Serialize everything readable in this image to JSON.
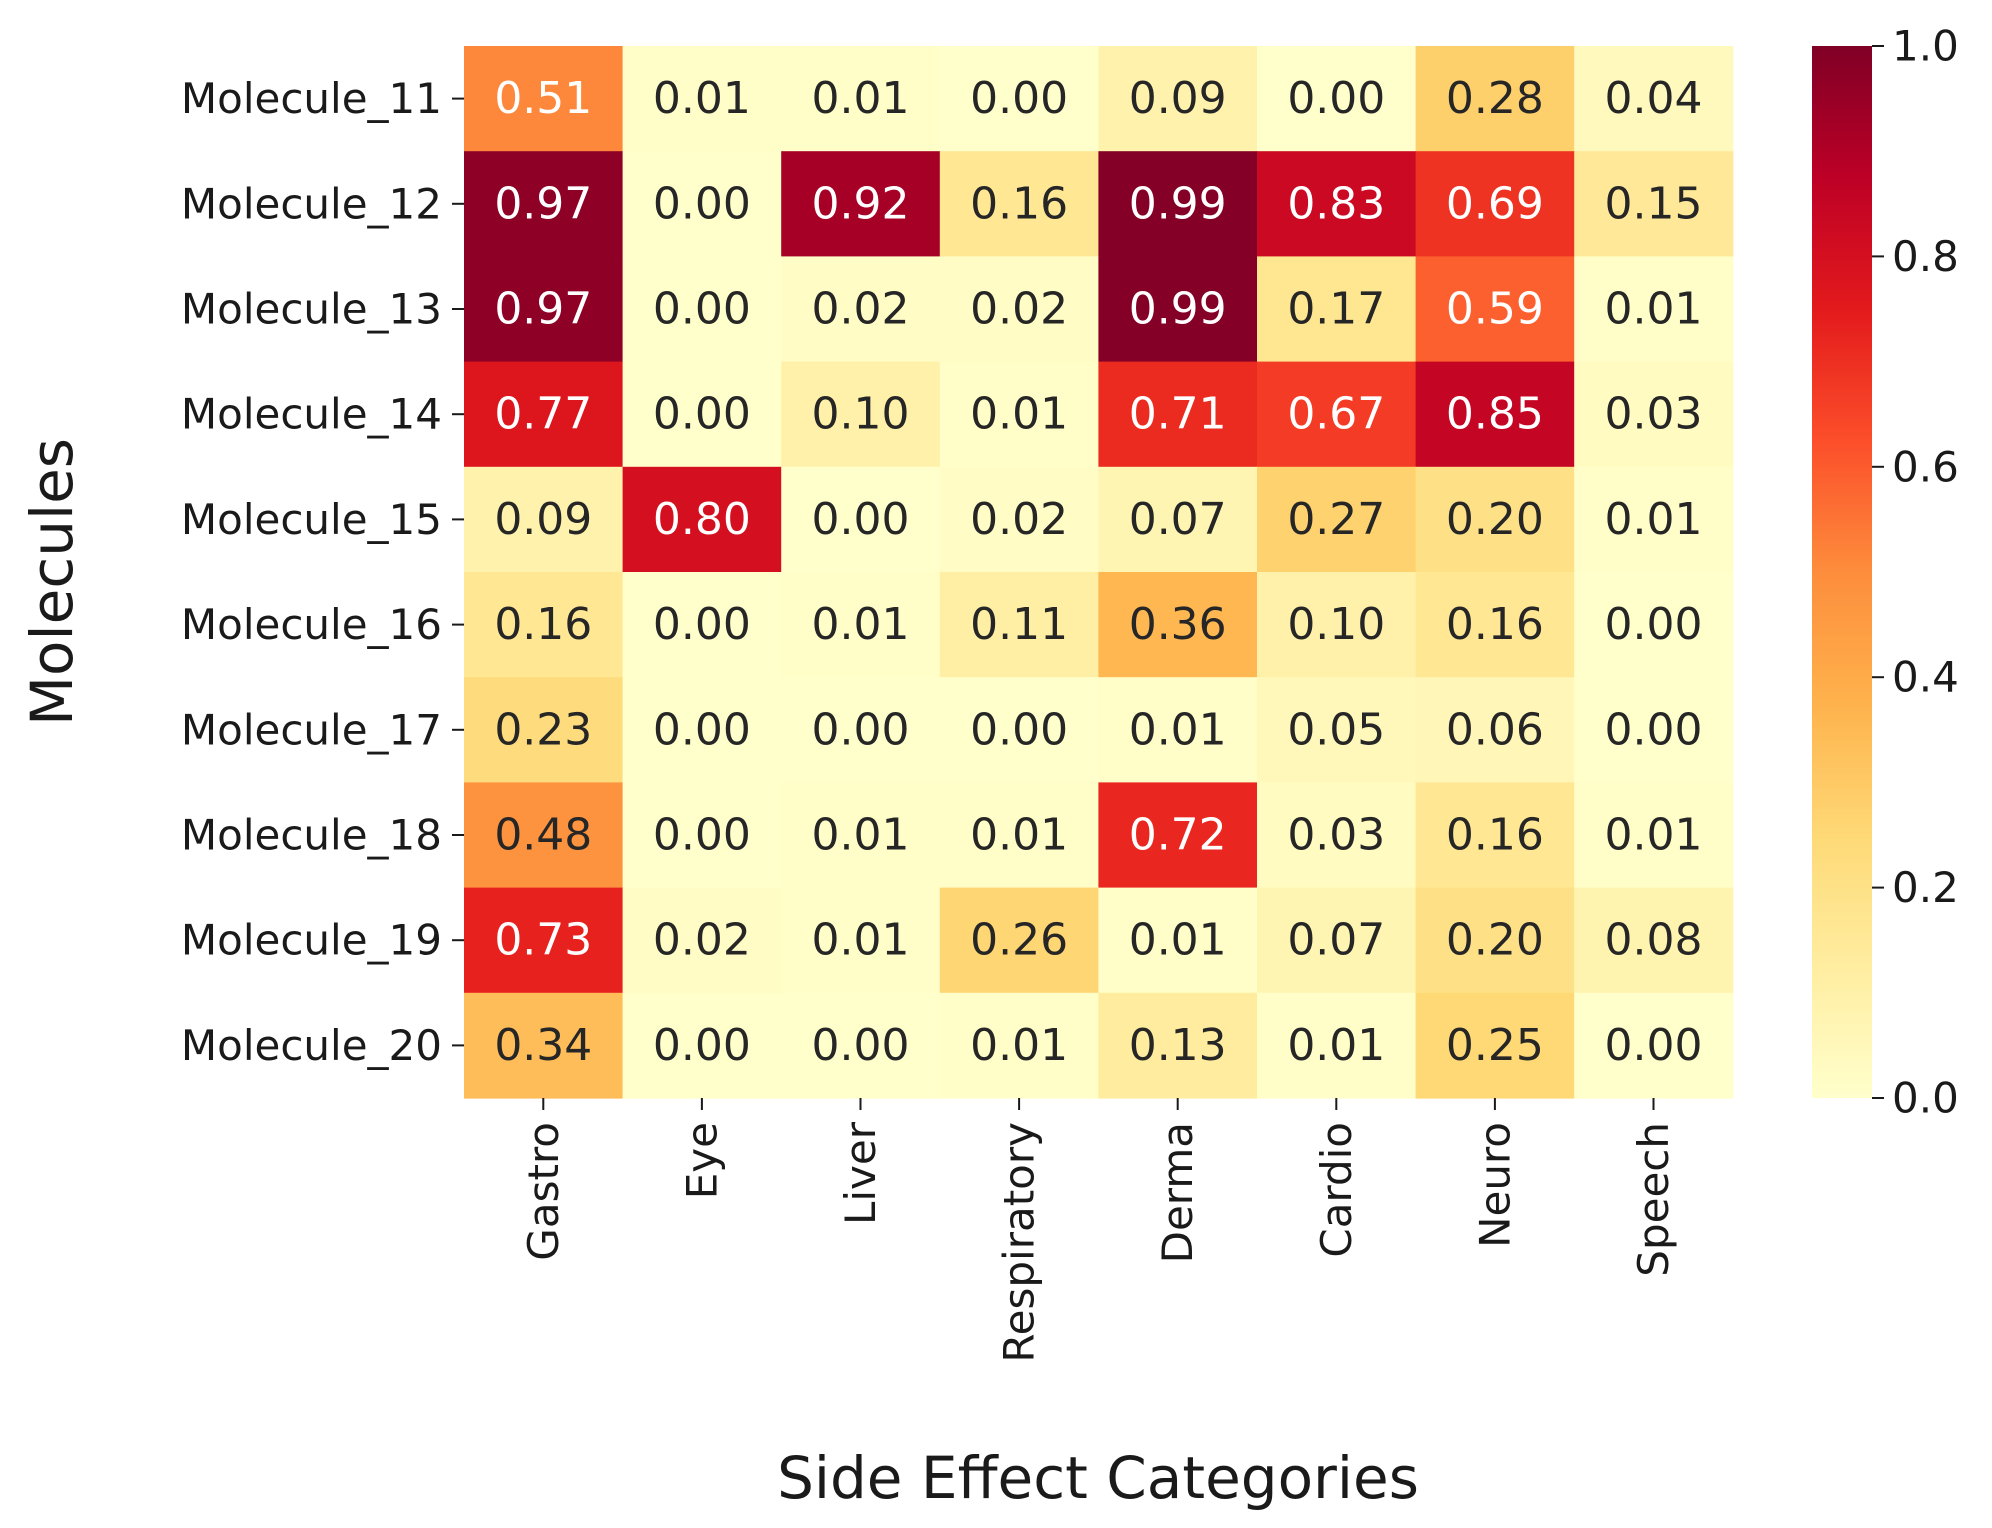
{
  "chart_data": {
    "type": "heatmap",
    "title": "",
    "xlabel": "Side Effect Categories",
    "ylabel": "Molecules",
    "x_categories": [
      "Gastro",
      "Eye",
      "Liver",
      "Respiratory",
      "Derma",
      "Cardio",
      "Neuro",
      "Speech"
    ],
    "y_categories": [
      "Molecule_11",
      "Molecule_12",
      "Molecule_13",
      "Molecule_14",
      "Molecule_15",
      "Molecule_16",
      "Molecule_17",
      "Molecule_18",
      "Molecule_19",
      "Molecule_20"
    ],
    "values": [
      [
        0.51,
        0.01,
        0.01,
        0.0,
        0.09,
        0.0,
        0.28,
        0.04
      ],
      [
        0.97,
        0.0,
        0.92,
        0.16,
        0.99,
        0.83,
        0.69,
        0.15
      ],
      [
        0.97,
        0.0,
        0.02,
        0.02,
        0.99,
        0.17,
        0.59,
        0.01
      ],
      [
        0.77,
        0.0,
        0.1,
        0.01,
        0.71,
        0.67,
        0.85,
        0.03
      ],
      [
        0.09,
        0.8,
        0.0,
        0.02,
        0.07,
        0.27,
        0.2,
        0.01
      ],
      [
        0.16,
        0.0,
        0.01,
        0.11,
        0.36,
        0.1,
        0.16,
        0.0
      ],
      [
        0.23,
        0.0,
        0.0,
        0.0,
        0.01,
        0.05,
        0.06,
        0.0
      ],
      [
        0.48,
        0.0,
        0.01,
        0.01,
        0.72,
        0.03,
        0.16,
        0.01
      ],
      [
        0.73,
        0.02,
        0.01,
        0.26,
        0.01,
        0.07,
        0.2,
        0.08
      ],
      [
        0.34,
        0.0,
        0.0,
        0.01,
        0.13,
        0.01,
        0.25,
        0.0
      ]
    ],
    "value_format": "0.00",
    "colormap": "YlOrRd",
    "colorbar": {
      "range": [
        0.0,
        1.0
      ],
      "ticks": [
        "0.0",
        "0.2",
        "0.4",
        "0.6",
        "0.8",
        "1.0"
      ]
    },
    "colors": {
      "stops": [
        "#ffffcc",
        "#ffeda0",
        "#fed976",
        "#feb24c",
        "#fd8d3c",
        "#fc4e2a",
        "#e31a1c",
        "#bd0026",
        "#800026"
      ],
      "text_dark": "#262626",
      "text_light": "#ffffff"
    }
  }
}
